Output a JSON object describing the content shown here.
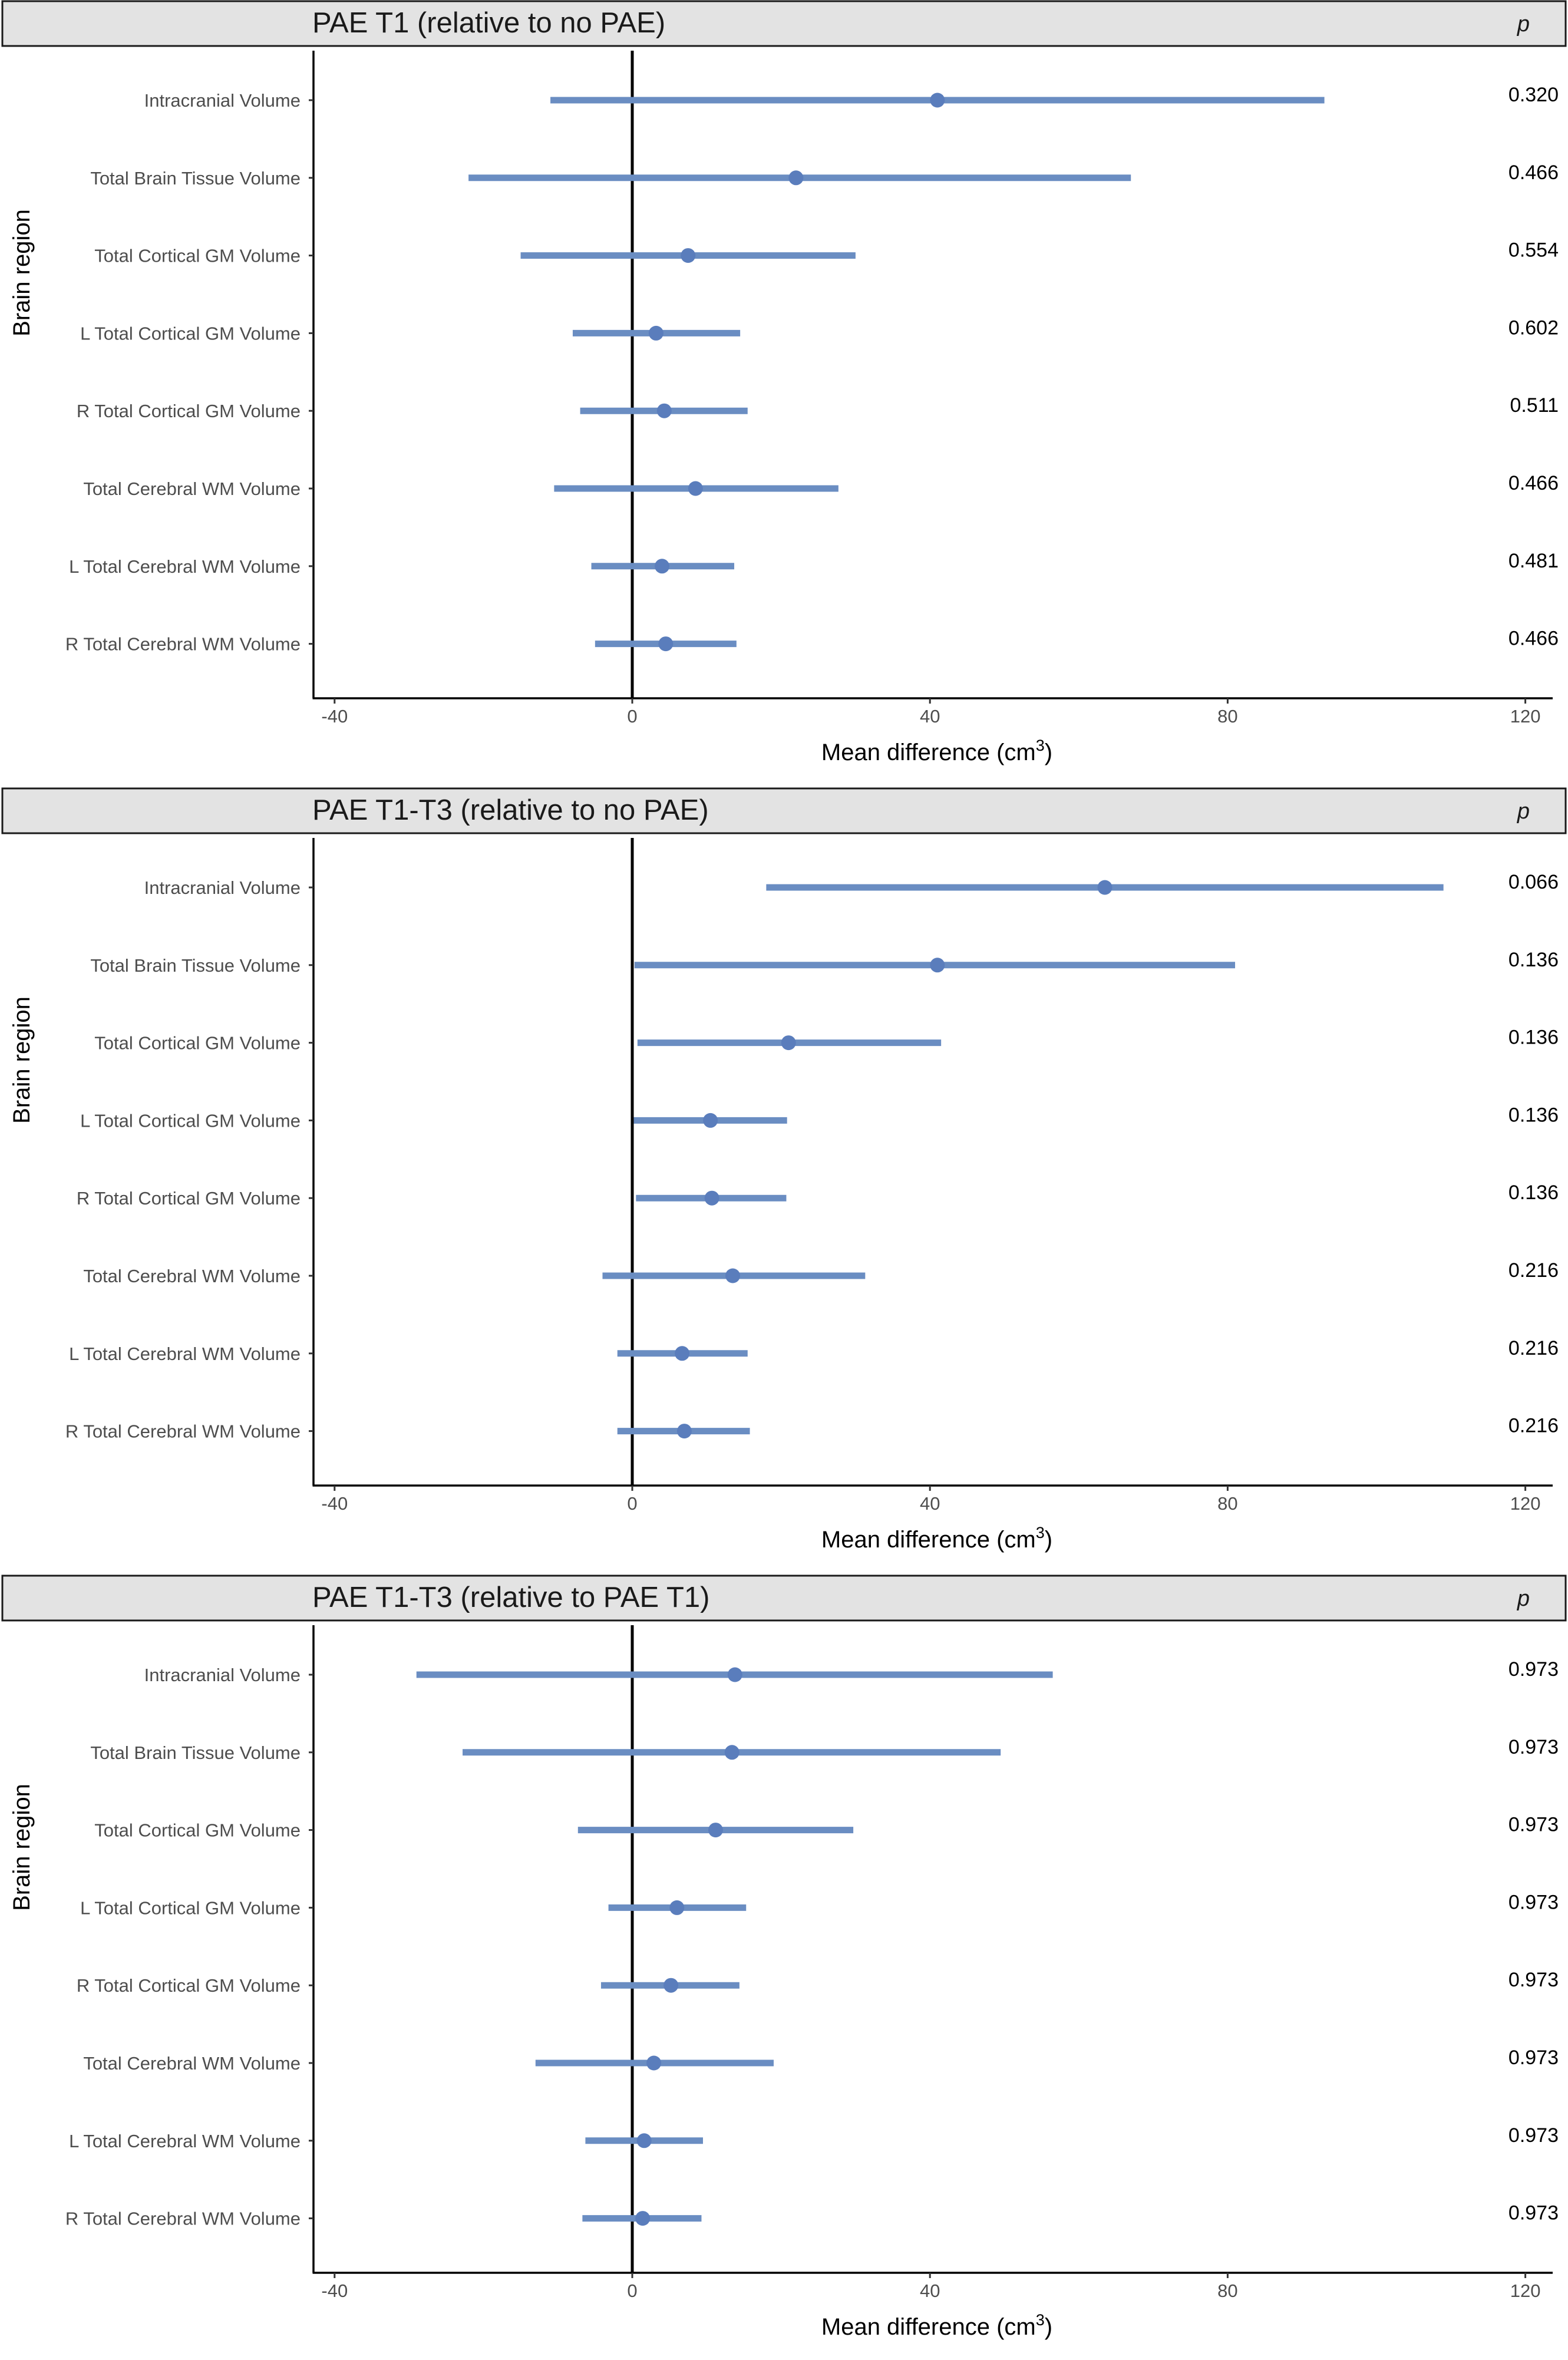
{
  "colors": {
    "series": "#6a8dc2",
    "point": "#5a7dbc"
  },
  "chart_data": [
    {
      "type": "forest",
      "title": "PAE T1 (relative to no PAE)",
      "p_header": "p",
      "ylabel": "Brain region",
      "xlabel": "Mean difference (cm",
      "xlabel_superscript": "3",
      "xlabel_close": ")",
      "xlim": [
        -42,
        121
      ],
      "xticks": [
        -40,
        0,
        40,
        80,
        120
      ],
      "tick_labels": [
        "-40",
        "0",
        "40",
        "80",
        "120"
      ],
      "rows": [
        {
          "region": "Intracranial Volume",
          "estimate": 41,
          "low": -11,
          "high": 93,
          "p": "0.320"
        },
        {
          "region": "Total Brain Tissue Volume",
          "estimate": 22,
          "low": -22,
          "high": 67,
          "p": "0.466"
        },
        {
          "region": "Total Cortical GM Volume",
          "estimate": 7.5,
          "low": -15,
          "high": 30,
          "p": "0.554"
        },
        {
          "region": "L Total Cortical GM Volume",
          "estimate": 3.2,
          "low": -8,
          "high": 14.5,
          "p": "0.602"
        },
        {
          "region": "R Total Cortical GM Volume",
          "estimate": 4.3,
          "low": -7,
          "high": 15.5,
          "p": "0.511"
        },
        {
          "region": "Total Cerebral WM Volume",
          "estimate": 8.5,
          "low": -10.5,
          "high": 27.7,
          "p": "0.466"
        },
        {
          "region": "L Total Cerebral WM Volume",
          "estimate": 4.0,
          "low": -5.5,
          "high": 13.7,
          "p": "0.481"
        },
        {
          "region": "R Total Cerebral WM Volume",
          "estimate": 4.5,
          "low": -5,
          "high": 14,
          "p": "0.466"
        }
      ]
    },
    {
      "type": "forest",
      "title": "PAE T1-T3 (relative to no PAE)",
      "p_header": "p",
      "ylabel": "Brain region",
      "xlabel": "Mean difference (cm",
      "xlabel_superscript": "3",
      "xlabel_close": ")",
      "xlim": [
        -42,
        121
      ],
      "xticks": [
        -40,
        0,
        40,
        80,
        120
      ],
      "tick_labels": [
        "-40",
        "0",
        "40",
        "80",
        "120"
      ],
      "rows": [
        {
          "region": "Intracranial Volume",
          "estimate": 63.5,
          "low": 18,
          "high": 109,
          "p": "0.066"
        },
        {
          "region": "Total Brain Tissue Volume",
          "estimate": 41,
          "low": 0.3,
          "high": 81,
          "p": "0.136"
        },
        {
          "region": "Total Cortical GM Volume",
          "estimate": 21,
          "low": 0.7,
          "high": 41.5,
          "p": "0.136"
        },
        {
          "region": "L Total Cortical GM Volume",
          "estimate": 10.5,
          "low": 0.2,
          "high": 20.8,
          "p": "0.136"
        },
        {
          "region": "R Total Cortical GM Volume",
          "estimate": 10.7,
          "low": 0.5,
          "high": 20.7,
          "p": "0.136"
        },
        {
          "region": "Total Cerebral WM Volume",
          "estimate": 13.5,
          "low": -4,
          "high": 31.3,
          "p": "0.216"
        },
        {
          "region": "L Total Cerebral WM Volume",
          "estimate": 6.7,
          "low": -2,
          "high": 15.5,
          "p": "0.216"
        },
        {
          "region": "R Total Cerebral WM Volume",
          "estimate": 7,
          "low": -2,
          "high": 15.8,
          "p": "0.216"
        }
      ]
    },
    {
      "type": "forest",
      "title": "PAE T1-T3 (relative to PAE T1)",
      "p_header": "p",
      "ylabel": "Brain region",
      "xlabel": "Mean difference (cm",
      "xlabel_superscript": "3",
      "xlabel_close": ")",
      "xlim": [
        -42,
        121
      ],
      "xticks": [
        -40,
        0,
        40,
        80,
        120
      ],
      "tick_labels": [
        "-40",
        "0",
        "40",
        "80",
        "120"
      ],
      "rows": [
        {
          "region": "Intracranial Volume",
          "estimate": 13.8,
          "low": -29,
          "high": 56.5,
          "p": "0.973"
        },
        {
          "region": "Total Brain Tissue Volume",
          "estimate": 13.4,
          "low": -22.8,
          "high": 49.5,
          "p": "0.973"
        },
        {
          "region": "Total Cortical GM Volume",
          "estimate": 11.2,
          "low": -7.3,
          "high": 29.7,
          "p": "0.973"
        },
        {
          "region": "L Total Cortical GM Volume",
          "estimate": 6.0,
          "low": -3.2,
          "high": 15.3,
          "p": "0.973"
        },
        {
          "region": "R Total Cortical GM Volume",
          "estimate": 5.2,
          "low": -4.2,
          "high": 14.4,
          "p": "0.973"
        },
        {
          "region": "Total Cerebral WM Volume",
          "estimate": 2.9,
          "low": -13,
          "high": 19,
          "p": "0.973"
        },
        {
          "region": "L Total Cerebral WM Volume",
          "estimate": 1.6,
          "low": -6.3,
          "high": 9.5,
          "p": "0.973"
        },
        {
          "region": "R Total Cerebral WM Volume",
          "estimate": 1.4,
          "low": -6.7,
          "high": 9.3,
          "p": "0.973"
        }
      ]
    }
  ]
}
